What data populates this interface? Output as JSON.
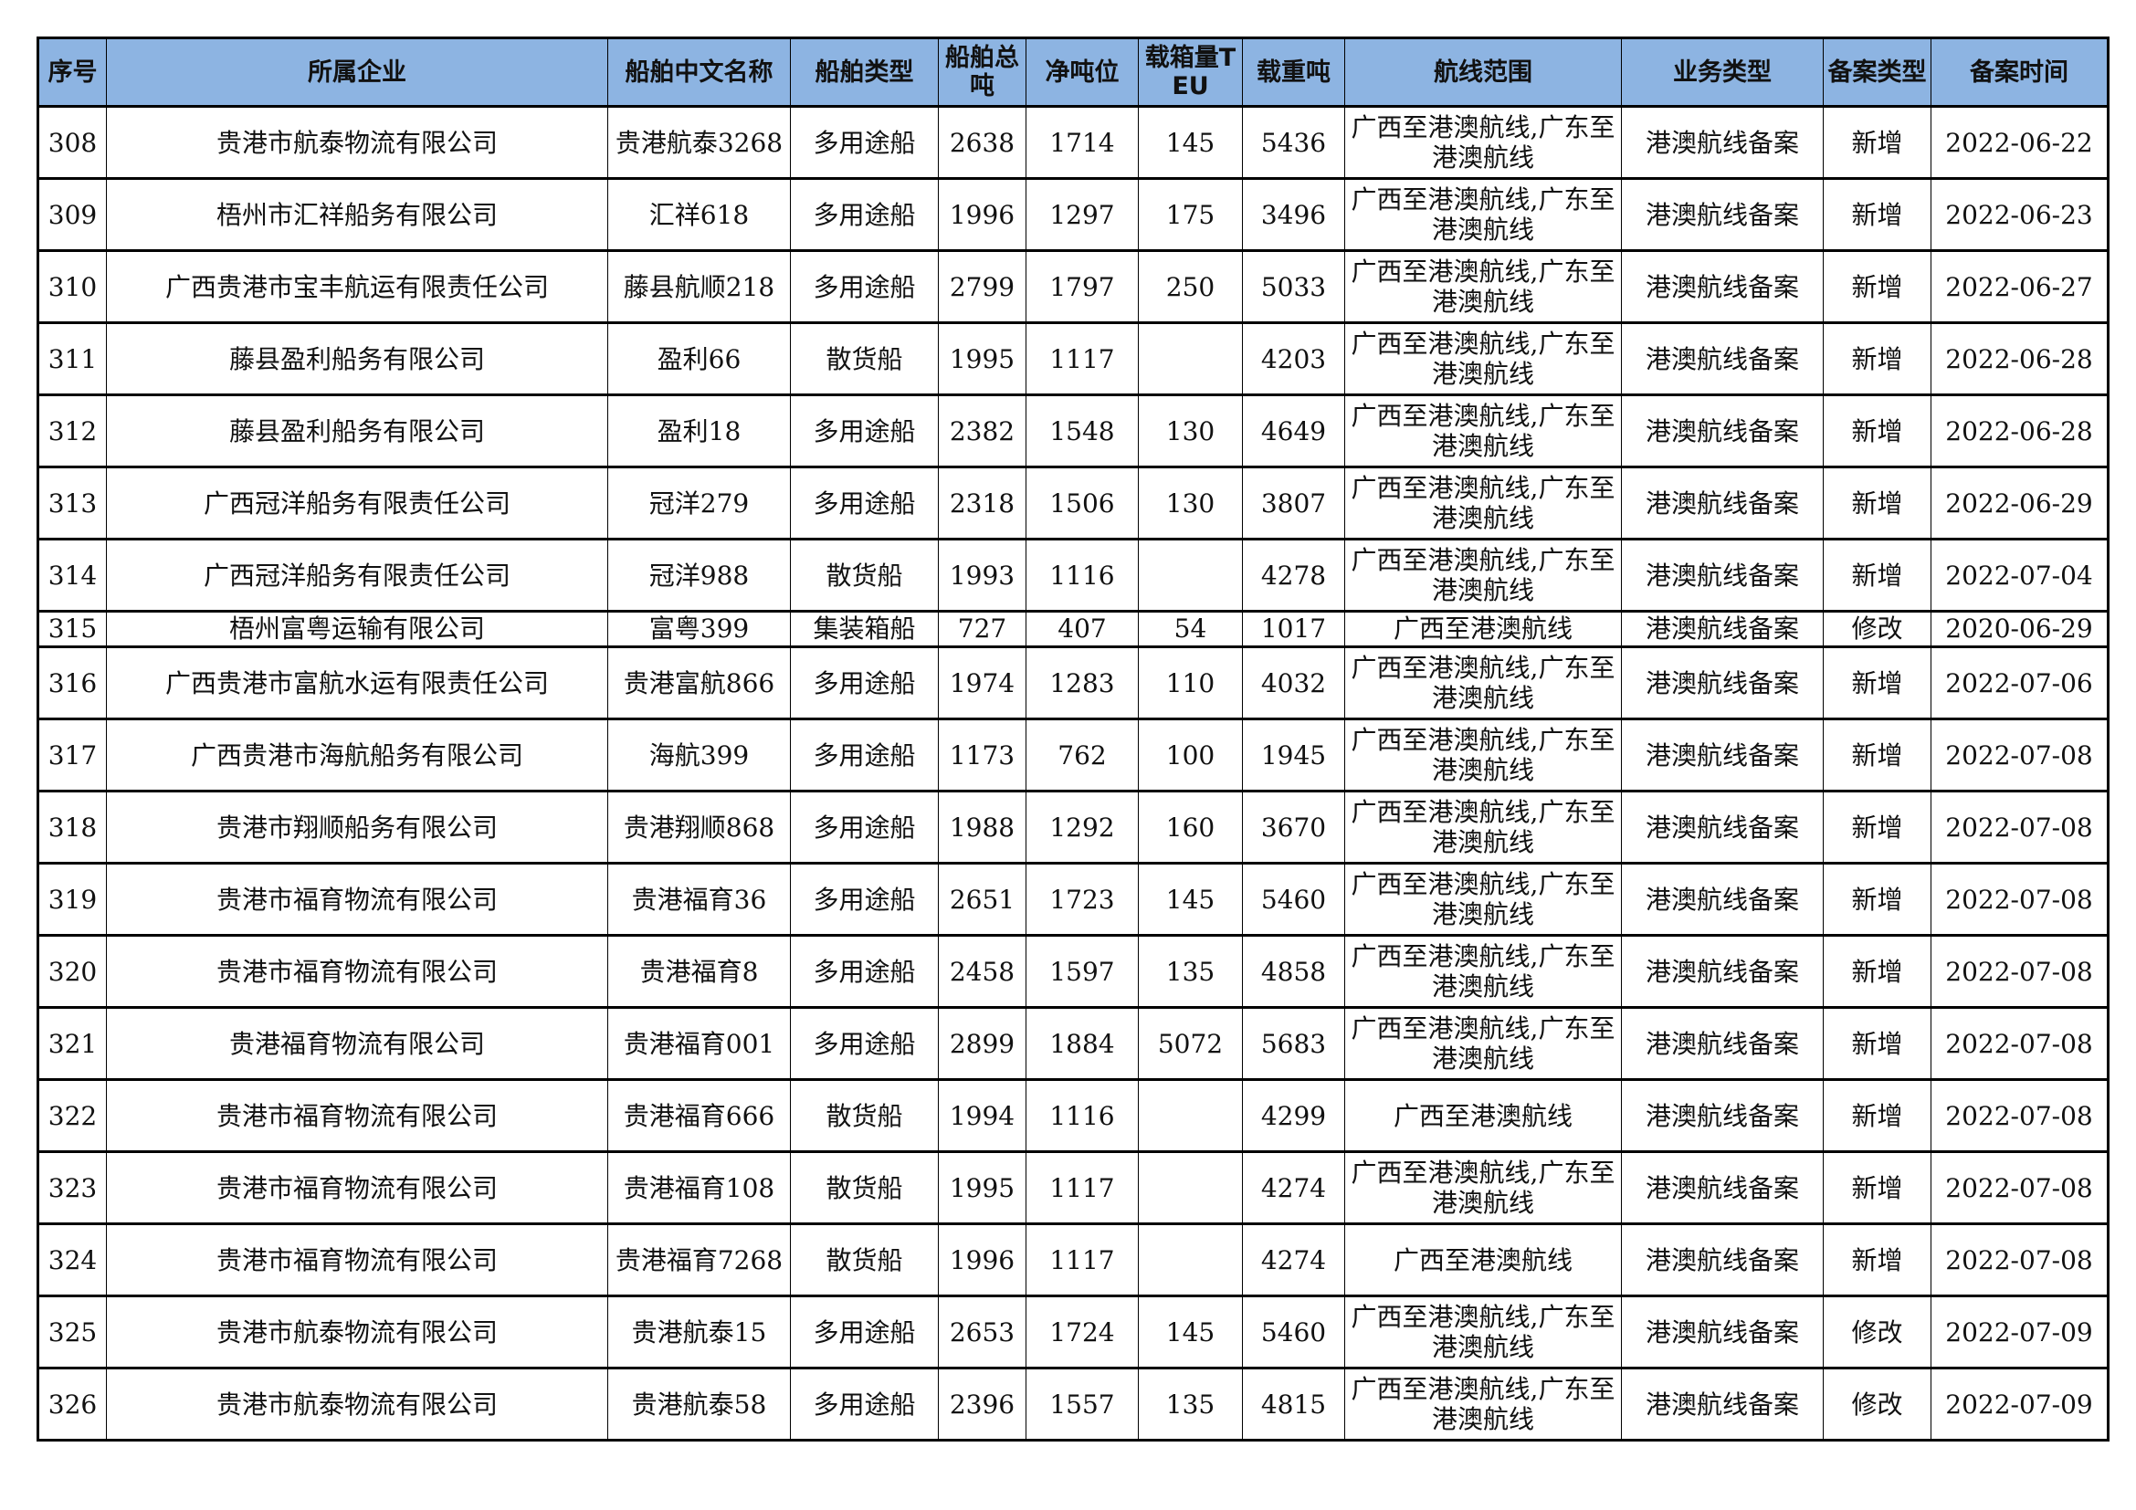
{
  "colors": {
    "header_bg": "#8DB4E2",
    "border": "#000000"
  },
  "columns": [
    "序号",
    "所属企业",
    "船舶中文名称",
    "船舶类型",
    "船舶总吨",
    "净吨位",
    "载箱量TEU",
    "载重吨",
    "航线范围",
    "业务类型",
    "备案类型",
    "备案时间"
  ],
  "rows": [
    [
      "308",
      "贵港市航泰物流有限公司",
      "贵港航泰3268",
      "多用途船",
      "2638",
      "1714",
      "145",
      "5436",
      "广西至港澳航线,广东至港澳航线",
      "港澳航线备案",
      "新增",
      "2022-06-22"
    ],
    [
      "309",
      "梧州市汇祥船务有限公司",
      "汇祥618",
      "多用途船",
      "1996",
      "1297",
      "175",
      "3496",
      "广西至港澳航线,广东至港澳航线",
      "港澳航线备案",
      "新增",
      "2022-06-23"
    ],
    [
      "310",
      "广西贵港市宝丰航运有限责任公司",
      "藤县航顺218",
      "多用途船",
      "2799",
      "1797",
      "250",
      "5033",
      "广西至港澳航线,广东至港澳航线",
      "港澳航线备案",
      "新增",
      "2022-06-27"
    ],
    [
      "311",
      "藤县盈利船务有限公司",
      "盈利66",
      "散货船",
      "1995",
      "1117",
      "",
      "4203",
      "广西至港澳航线,广东至港澳航线",
      "港澳航线备案",
      "新增",
      "2022-06-28"
    ],
    [
      "312",
      "藤县盈利船务有限公司",
      "盈利18",
      "多用途船",
      "2382",
      "1548",
      "130",
      "4649",
      "广西至港澳航线,广东至港澳航线",
      "港澳航线备案",
      "新增",
      "2022-06-28"
    ],
    [
      "313",
      "广西冠洋船务有限责任公司",
      "冠洋279",
      "多用途船",
      "2318",
      "1506",
      "130",
      "3807",
      "广西至港澳航线,广东至港澳航线",
      "港澳航线备案",
      "新增",
      "2022-06-29"
    ],
    [
      "314",
      "广西冠洋船务有限责任公司",
      "冠洋988",
      "散货船",
      "1993",
      "1116",
      "",
      "4278",
      "广西至港澳航线,广东至港澳航线",
      "港澳航线备案",
      "新增",
      "2022-07-04"
    ],
    [
      "315",
      "梧州富粤运输有限公司",
      "富粤399",
      "集装箱船",
      "727",
      "407",
      "54",
      "1017",
      "广西至港澳航线",
      "港澳航线备案",
      "修改",
      "2020-06-29"
    ],
    [
      "316",
      "广西贵港市富航水运有限责任公司",
      "贵港富航866",
      "多用途船",
      "1974",
      "1283",
      "110",
      "4032",
      "广西至港澳航线,广东至港澳航线",
      "港澳航线备案",
      "新增",
      "2022-07-06"
    ],
    [
      "317",
      "广西贵港市海航船务有限公司",
      "海航399",
      "多用途船",
      "1173",
      "762",
      "100",
      "1945",
      "广西至港澳航线,广东至港澳航线",
      "港澳航线备案",
      "新增",
      "2022-07-08"
    ],
    [
      "318",
      "贵港市翔顺船务有限公司",
      "贵港翔顺868",
      "多用途船",
      "1988",
      "1292",
      "160",
      "3670",
      "广西至港澳航线,广东至港澳航线",
      "港澳航线备案",
      "新增",
      "2022-07-08"
    ],
    [
      "319",
      "贵港市福育物流有限公司",
      "贵港福育36",
      "多用途船",
      "2651",
      "1723",
      "145",
      "5460",
      "广西至港澳航线,广东至港澳航线",
      "港澳航线备案",
      "新增",
      "2022-07-08"
    ],
    [
      "320",
      "贵港市福育物流有限公司",
      "贵港福育8",
      "多用途船",
      "2458",
      "1597",
      "135",
      "4858",
      "广西至港澳航线,广东至港澳航线",
      "港澳航线备案",
      "新增",
      "2022-07-08"
    ],
    [
      "321",
      "贵港福育物流有限公司",
      "贵港福育001",
      "多用途船",
      "2899",
      "1884",
      "5072",
      "5683",
      "广西至港澳航线,广东至港澳航线",
      "港澳航线备案",
      "新增",
      "2022-07-08"
    ],
    [
      "322",
      "贵港市福育物流有限公司",
      "贵港福育666",
      "散货船",
      "1994",
      "1116",
      "",
      "4299",
      "广西至港澳航线",
      "港澳航线备案",
      "新增",
      "2022-07-08"
    ],
    [
      "323",
      "贵港市福育物流有限公司",
      "贵港福育108",
      "散货船",
      "1995",
      "1117",
      "",
      "4274",
      "广西至港澳航线,广东至港澳航线",
      "港澳航线备案",
      "新增",
      "2022-07-08"
    ],
    [
      "324",
      "贵港市福育物流有限公司",
      "贵港福育7268",
      "散货船",
      "1996",
      "1117",
      "",
      "4274",
      "广西至港澳航线",
      "港澳航线备案",
      "新增",
      "2022-07-08"
    ],
    [
      "325",
      "贵港市航泰物流有限公司",
      "贵港航泰15",
      "多用途船",
      "2653",
      "1724",
      "145",
      "5460",
      "广西至港澳航线,广东至港澳航线",
      "港澳航线备案",
      "修改",
      "2022-07-09"
    ],
    [
      "326",
      "贵港市航泰物流有限公司",
      "贵港航泰58",
      "多用途船",
      "2396",
      "1557",
      "135",
      "4815",
      "广西至港澳航线,广东至港澳航线",
      "港澳航线备案",
      "修改",
      "2022-07-09"
    ]
  ]
}
